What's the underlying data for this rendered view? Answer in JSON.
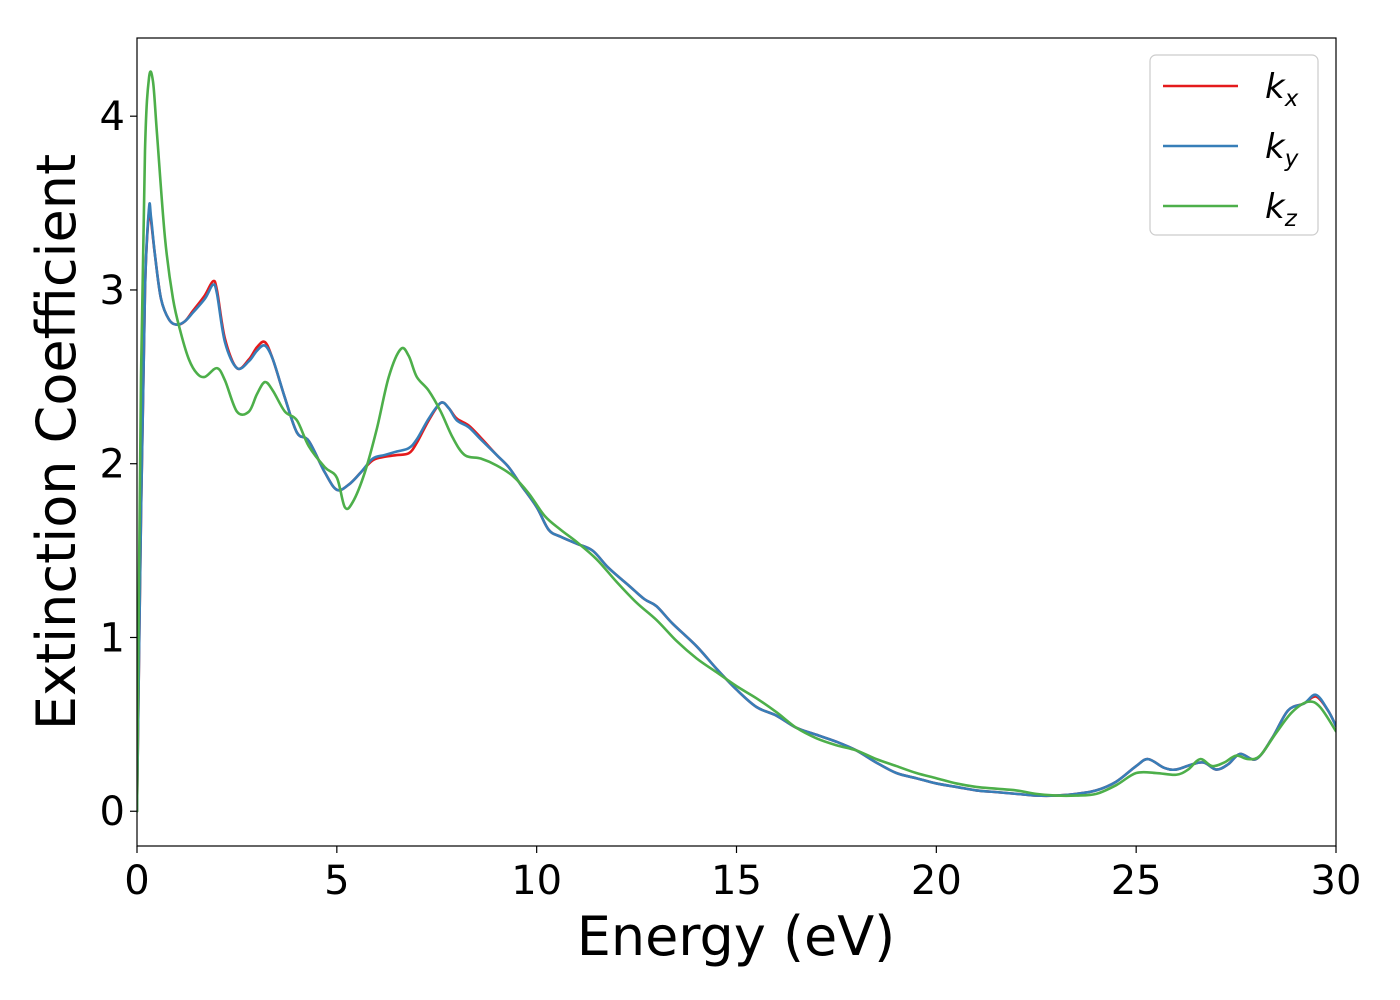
{
  "chart_data": {
    "type": "line",
    "xlabel": "Energy (eV)",
    "ylabel": "Extinction Coefficient",
    "xlim": [
      0,
      30
    ],
    "ylim": [
      -0.2,
      4.45
    ],
    "xticks": [
      0,
      5,
      10,
      15,
      20,
      25,
      30
    ],
    "yticks": [
      0,
      1,
      2,
      3,
      4
    ],
    "grid": false,
    "legend_position": "top-right",
    "series": [
      {
        "name": "k_x",
        "legend_base": "k",
        "legend_sub": "x",
        "color": "#e41a1c",
        "x": [
          0,
          0.1,
          0.2,
          0.3,
          0.35,
          0.45,
          0.6,
          0.8,
          1.0,
          1.2,
          1.4,
          1.7,
          1.9,
          2.0,
          2.2,
          2.5,
          2.8,
          3.0,
          3.2,
          3.4,
          3.7,
          4.0,
          4.3,
          4.7,
          5.0,
          5.3,
          5.6,
          5.9,
          6.2,
          6.5,
          6.8,
          7.0,
          7.3,
          7.6,
          7.8,
          8.0,
          8.3,
          8.6,
          9.0,
          9.3,
          9.6,
          10.0,
          10.3,
          10.6,
          11.0,
          11.4,
          11.8,
          12.3,
          12.7,
          13.0,
          13.4,
          14.0,
          14.5,
          15.0,
          15.5,
          16.0,
          16.5,
          17.0,
          17.5,
          18.0,
          18.5,
          19.0,
          19.5,
          20.0,
          20.5,
          21.0,
          21.5,
          22.0,
          22.5,
          23.0,
          23.5,
          24.0,
          24.5,
          25.0,
          25.3,
          25.7,
          26.0,
          26.4,
          26.7,
          27.0,
          27.3,
          27.6,
          28.0,
          28.4,
          28.8,
          29.2,
          29.5,
          29.8,
          30.0
        ],
        "y": [
          0,
          1.7,
          3.0,
          3.45,
          3.4,
          3.2,
          2.95,
          2.83,
          2.8,
          2.82,
          2.88,
          2.97,
          3.05,
          3.0,
          2.72,
          2.55,
          2.6,
          2.67,
          2.7,
          2.6,
          2.38,
          2.18,
          2.13,
          1.95,
          1.85,
          1.88,
          1.95,
          2.02,
          2.04,
          2.05,
          2.06,
          2.12,
          2.25,
          2.35,
          2.32,
          2.26,
          2.22,
          2.15,
          2.05,
          1.98,
          1.88,
          1.75,
          1.62,
          1.58,
          1.54,
          1.5,
          1.4,
          1.3,
          1.22,
          1.18,
          1.08,
          0.95,
          0.82,
          0.7,
          0.6,
          0.55,
          0.48,
          0.44,
          0.4,
          0.35,
          0.28,
          0.22,
          0.19,
          0.16,
          0.14,
          0.12,
          0.11,
          0.1,
          0.09,
          0.09,
          0.1,
          0.12,
          0.17,
          0.26,
          0.3,
          0.25,
          0.24,
          0.27,
          0.28,
          0.24,
          0.27,
          0.33,
          0.3,
          0.42,
          0.58,
          0.62,
          0.66,
          0.58,
          0.49
        ]
      },
      {
        "name": "k_y",
        "legend_base": "k",
        "legend_sub": "y",
        "color": "#377eb8",
        "x": [
          0,
          0.1,
          0.2,
          0.3,
          0.35,
          0.45,
          0.6,
          0.8,
          1.0,
          1.2,
          1.4,
          1.7,
          1.9,
          2.0,
          2.2,
          2.5,
          2.8,
          3.0,
          3.2,
          3.4,
          3.7,
          4.0,
          4.3,
          4.7,
          5.0,
          5.3,
          5.6,
          5.9,
          6.2,
          6.5,
          6.8,
          7.0,
          7.3,
          7.6,
          7.8,
          8.0,
          8.3,
          8.6,
          9.0,
          9.3,
          9.6,
          10.0,
          10.3,
          10.6,
          11.0,
          11.4,
          11.8,
          12.3,
          12.7,
          13.0,
          13.4,
          14.0,
          14.5,
          15.0,
          15.5,
          16.0,
          16.5,
          17.0,
          17.5,
          18.0,
          18.5,
          19.0,
          19.5,
          20.0,
          20.5,
          21.0,
          21.5,
          22.0,
          22.5,
          23.0,
          23.5,
          24.0,
          24.5,
          25.0,
          25.3,
          25.7,
          26.0,
          26.4,
          26.7,
          27.0,
          27.3,
          27.6,
          28.0,
          28.4,
          28.8,
          29.2,
          29.5,
          29.8,
          30.0
        ],
        "y": [
          0,
          1.7,
          3.0,
          3.47,
          3.42,
          3.2,
          2.95,
          2.83,
          2.8,
          2.82,
          2.87,
          2.95,
          3.03,
          2.98,
          2.7,
          2.55,
          2.59,
          2.65,
          2.68,
          2.6,
          2.38,
          2.18,
          2.13,
          1.95,
          1.85,
          1.88,
          1.95,
          2.03,
          2.05,
          2.07,
          2.09,
          2.14,
          2.26,
          2.35,
          2.32,
          2.25,
          2.21,
          2.14,
          2.05,
          1.98,
          1.88,
          1.75,
          1.62,
          1.58,
          1.54,
          1.5,
          1.4,
          1.3,
          1.22,
          1.18,
          1.08,
          0.95,
          0.82,
          0.7,
          0.6,
          0.55,
          0.48,
          0.44,
          0.4,
          0.35,
          0.28,
          0.22,
          0.19,
          0.16,
          0.14,
          0.12,
          0.11,
          0.1,
          0.09,
          0.09,
          0.1,
          0.12,
          0.17,
          0.26,
          0.3,
          0.25,
          0.24,
          0.27,
          0.28,
          0.24,
          0.27,
          0.33,
          0.3,
          0.42,
          0.58,
          0.62,
          0.67,
          0.58,
          0.49
        ]
      },
      {
        "name": "k_z",
        "legend_base": "k",
        "legend_sub": "z",
        "color": "#4daf4a",
        "x": [
          0,
          0.1,
          0.2,
          0.3,
          0.4,
          0.5,
          0.7,
          0.9,
          1.1,
          1.3,
          1.5,
          1.7,
          2.0,
          2.2,
          2.5,
          2.8,
          3.0,
          3.2,
          3.4,
          3.7,
          4.0,
          4.3,
          4.7,
          5.0,
          5.2,
          5.4,
          5.7,
          6.0,
          6.3,
          6.6,
          6.8,
          7.0,
          7.3,
          7.6,
          7.9,
          8.2,
          8.6,
          9.0,
          9.4,
          9.8,
          10.2,
          10.6,
          11.0,
          11.5,
          12.0,
          12.5,
          13.0,
          13.5,
          14.0,
          14.5,
          15.0,
          15.5,
          16.0,
          16.5,
          17.0,
          17.5,
          18.0,
          18.5,
          19.0,
          19.5,
          20.0,
          20.5,
          21.0,
          21.5,
          22.0,
          22.5,
          23.0,
          23.5,
          24.0,
          24.5,
          25.0,
          25.5,
          26.0,
          26.3,
          26.6,
          26.9,
          27.2,
          27.5,
          27.8,
          28.1,
          28.5,
          28.9,
          29.3,
          29.6,
          30.0
        ],
        "y": [
          0,
          2.5,
          3.8,
          4.22,
          4.2,
          3.9,
          3.3,
          2.95,
          2.75,
          2.6,
          2.52,
          2.5,
          2.55,
          2.48,
          2.3,
          2.3,
          2.4,
          2.47,
          2.42,
          2.3,
          2.25,
          2.1,
          1.98,
          1.92,
          1.75,
          1.78,
          1.95,
          2.2,
          2.5,
          2.66,
          2.62,
          2.5,
          2.42,
          2.3,
          2.15,
          2.05,
          2.03,
          1.99,
          1.93,
          1.83,
          1.7,
          1.62,
          1.55,
          1.45,
          1.32,
          1.2,
          1.1,
          0.98,
          0.88,
          0.8,
          0.72,
          0.65,
          0.57,
          0.48,
          0.42,
          0.38,
          0.35,
          0.3,
          0.26,
          0.22,
          0.19,
          0.16,
          0.14,
          0.13,
          0.12,
          0.1,
          0.09,
          0.09,
          0.1,
          0.15,
          0.22,
          0.22,
          0.21,
          0.24,
          0.3,
          0.26,
          0.28,
          0.32,
          0.3,
          0.32,
          0.45,
          0.57,
          0.63,
          0.6,
          0.46
        ]
      }
    ]
  }
}
